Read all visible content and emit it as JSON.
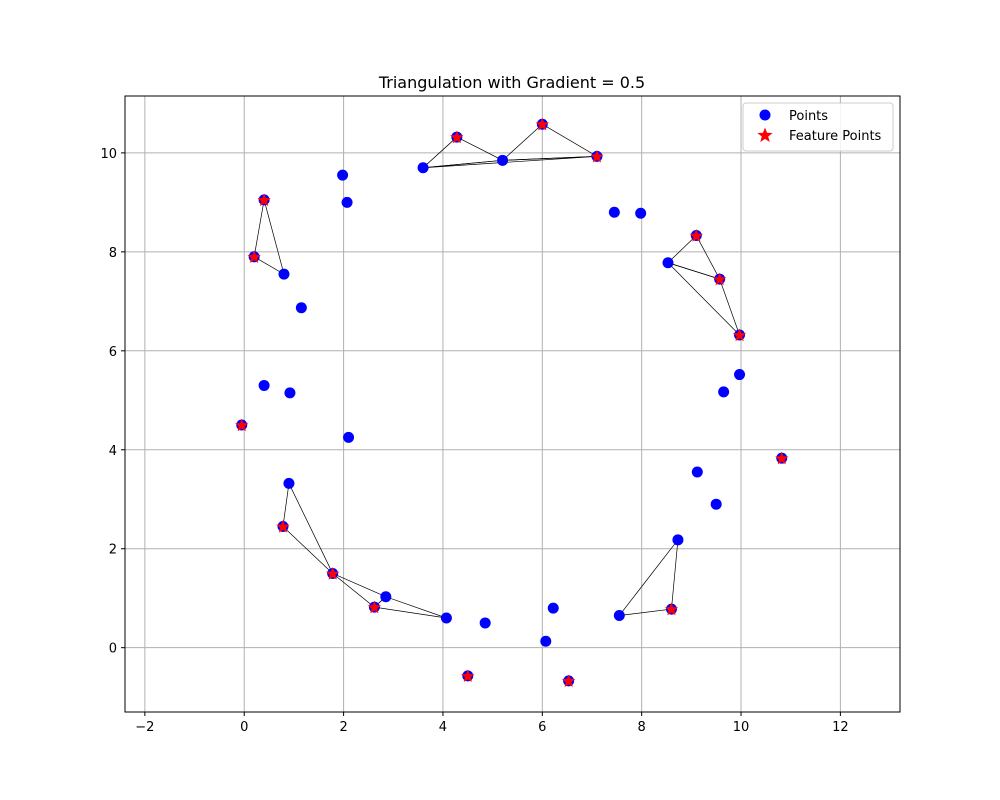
{
  "chart_data": {
    "type": "scatter",
    "title": "Triangulation with Gradient = 0.5",
    "xlabel": "",
    "ylabel": "",
    "xlim": [
      -2.4,
      13.2
    ],
    "ylim": [
      -1.3,
      11.15
    ],
    "xticks": [
      -2,
      0,
      2,
      4,
      6,
      8,
      10,
      12
    ],
    "yticks": [
      0,
      2,
      4,
      6,
      8,
      10
    ],
    "grid": true,
    "legend_position": "top-right",
    "colors": {
      "points": "#0000ff",
      "feature_fill": "#ff0000",
      "feature_edge": "#0000ff",
      "edges": "#000000",
      "grid": "#b0b0b0"
    },
    "series": [
      {
        "name": "Points",
        "marker": "circle",
        "color": "#0000ff",
        "points": [
          [
            0.4,
            5.3
          ],
          [
            0.92,
            5.15
          ],
          [
            2.1,
            4.25
          ],
          [
            1.15,
            6.87
          ],
          [
            0.8,
            7.55
          ],
          [
            1.98,
            9.55
          ],
          [
            2.07,
            9.0
          ],
          [
            3.6,
            9.7
          ],
          [
            5.2,
            9.85
          ],
          [
            7.45,
            8.8
          ],
          [
            7.98,
            8.78
          ],
          [
            8.53,
            7.78
          ],
          [
            9.97,
            5.52
          ],
          [
            9.65,
            5.17
          ],
          [
            9.12,
            3.55
          ],
          [
            9.5,
            2.9
          ],
          [
            8.73,
            2.18
          ],
          [
            7.55,
            0.65
          ],
          [
            6.22,
            0.8
          ],
          [
            6.07,
            0.13
          ],
          [
            4.85,
            0.5
          ],
          [
            4.07,
            0.6
          ],
          [
            2.85,
            1.03
          ],
          [
            0.9,
            3.32
          ]
        ]
      },
      {
        "name": "Feature Points",
        "marker": "star",
        "color": "#ff0000",
        "points": [
          [
            0.4,
            9.05
          ],
          [
            0.2,
            7.9
          ],
          [
            -0.05,
            4.5
          ],
          [
            0.78,
            2.45
          ],
          [
            1.78,
            1.5
          ],
          [
            2.62,
            0.82
          ],
          [
            4.5,
            -0.57
          ],
          [
            6.53,
            -0.67
          ],
          [
            8.6,
            0.78
          ],
          [
            10.82,
            3.83
          ],
          [
            9.97,
            6.32
          ],
          [
            9.57,
            7.45
          ],
          [
            9.1,
            8.33
          ],
          [
            7.1,
            9.93
          ],
          [
            6.0,
            10.58
          ],
          [
            4.28,
            10.32
          ]
        ]
      }
    ],
    "triangles": [
      [
        [
          0.4,
          9.05
        ],
        [
          0.2,
          7.9
        ],
        [
          0.8,
          7.55
        ]
      ],
      [
        [
          4.28,
          10.32
        ],
        [
          3.6,
          9.7
        ],
        [
          5.2,
          9.85
        ]
      ],
      [
        [
          6.0,
          10.58
        ],
        [
          5.2,
          9.85
        ],
        [
          7.1,
          9.93
        ]
      ],
      [
        [
          3.6,
          9.7
        ],
        [
          5.2,
          9.85
        ],
        [
          7.1,
          9.93
        ]
      ],
      [
        [
          9.1,
          8.33
        ],
        [
          8.53,
          7.78
        ],
        [
          9.57,
          7.45
        ]
      ],
      [
        [
          8.53,
          7.78
        ],
        [
          9.57,
          7.45
        ],
        [
          9.97,
          6.32
        ]
      ],
      [
        [
          0.9,
          3.32
        ],
        [
          0.78,
          2.45
        ],
        [
          1.78,
          1.5
        ]
      ],
      [
        [
          1.78,
          1.5
        ],
        [
          2.62,
          0.82
        ],
        [
          2.85,
          1.03
        ]
      ],
      [
        [
          2.62,
          0.82
        ],
        [
          2.85,
          1.03
        ],
        [
          4.07,
          0.6
        ]
      ],
      [
        [
          8.73,
          2.18
        ],
        [
          7.55,
          0.65
        ],
        [
          8.6,
          0.78
        ]
      ]
    ]
  }
}
